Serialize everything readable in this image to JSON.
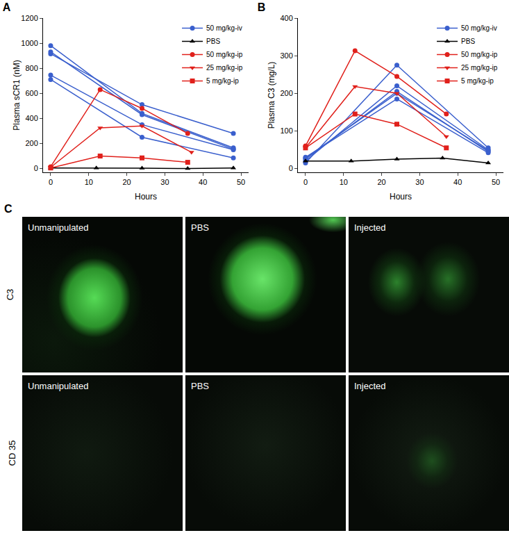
{
  "chart_data": [
    {
      "type": "line",
      "title": "A",
      "x_label": "Hours",
      "y_label": "Plasma sCR1 (nM)",
      "xlim": [
        -2,
        52
      ],
      "xticks": [
        0,
        10,
        20,
        30,
        40,
        50
      ],
      "ylim": [
        -30,
        1200
      ],
      "yticks": [
        0,
        200,
        400,
        600,
        800,
        1000,
        1200
      ],
      "grid": false,
      "legend": "upper right",
      "series": [
        {
          "name": "50 mg/kg-iv",
          "color": "#3a5fcd",
          "marker": "circle",
          "x": [
            0,
            24,
            48
          ],
          "values": [
            980,
            440,
            165
          ]
        },
        {
          "name": "50 mg/kg-iv",
          "color": "#3a5fcd",
          "marker": "circle",
          "x": [
            0,
            24,
            48
          ],
          "values": [
            930,
            430,
            155
          ]
        },
        {
          "name": "50 mg/kg-iv",
          "color": "#3a5fcd",
          "marker": "circle",
          "x": [
            0,
            24,
            48
          ],
          "values": [
            915,
            510,
            280
          ]
        },
        {
          "name": "50 mg/kg-iv",
          "color": "#3a5fcd",
          "marker": "circle",
          "x": [
            0,
            24,
            48
          ],
          "values": [
            745,
            350,
            150
          ]
        },
        {
          "name": "50 mg/kg-iv",
          "color": "#3a5fcd",
          "marker": "circle",
          "x": [
            0,
            24,
            48
          ],
          "values": [
            710,
            250,
            85
          ]
        },
        {
          "name": "PBS",
          "color": "#000000",
          "marker": "triangle-up",
          "x": [
            0,
            12,
            24,
            36,
            48
          ],
          "values": [
            5,
            5,
            3,
            0,
            5
          ]
        },
        {
          "name": "50 mg/kg-ip",
          "color": "#e0201b",
          "marker": "circle",
          "x": [
            0,
            13,
            24,
            36
          ],
          "values": [
            15,
            630,
            480,
            280
          ]
        },
        {
          "name": "25 mg/kg-ip",
          "color": "#e0201b",
          "marker": "triangle-down",
          "x": [
            0,
            13,
            24,
            37
          ],
          "values": [
            10,
            325,
            340,
            130
          ]
        },
        {
          "name": "5 mg/kg-ip",
          "color": "#e0201b",
          "marker": "square",
          "x": [
            0,
            13,
            24,
            36
          ],
          "values": [
            5,
            100,
            85,
            50
          ]
        }
      ]
    },
    {
      "type": "line",
      "title": "B",
      "x_label": "Hours",
      "y_label": "Plasma C3 (mg/L)",
      "xlim": [
        -2,
        52
      ],
      "xticks": [
        0,
        10,
        20,
        30,
        40,
        50
      ],
      "ylim": [
        -10,
        400
      ],
      "yticks": [
        0,
        100,
        200,
        300,
        400
      ],
      "grid": false,
      "legend": "upper right",
      "series": [
        {
          "name": "50 mg/kg-iv",
          "color": "#3a5fcd",
          "marker": "circle",
          "x": [
            0,
            24,
            48
          ],
          "values": [
            15,
            275,
            55
          ]
        },
        {
          "name": "50 mg/kg-iv",
          "color": "#3a5fcd",
          "marker": "circle",
          "x": [
            0,
            24,
            48
          ],
          "values": [
            20,
            220,
            50
          ]
        },
        {
          "name": "50 mg/kg-iv",
          "color": "#3a5fcd",
          "marker": "circle",
          "x": [
            0,
            24,
            48
          ],
          "values": [
            25,
            205,
            45
          ]
        },
        {
          "name": "50 mg/kg-iv",
          "color": "#3a5fcd",
          "marker": "circle",
          "x": [
            0,
            24,
            48
          ],
          "values": [
            28,
            200,
            48
          ]
        },
        {
          "name": "50 mg/kg-iv",
          "color": "#3a5fcd",
          "marker": "circle",
          "x": [
            0,
            24,
            48
          ],
          "values": [
            30,
            185,
            42
          ]
        },
        {
          "name": "PBS",
          "color": "#000000",
          "marker": "triangle-up",
          "x": [
            0,
            12,
            24,
            36,
            48
          ],
          "values": [
            20,
            20,
            25,
            28,
            15
          ]
        },
        {
          "name": "50 mg/kg-ip",
          "color": "#e0201b",
          "marker": "circle",
          "x": [
            0,
            13,
            24,
            37
          ],
          "values": [
            60,
            313,
            245,
            145
          ]
        },
        {
          "name": "25 mg/kg-ip",
          "color": "#e0201b",
          "marker": "triangle-down",
          "x": [
            0,
            13,
            24,
            37
          ],
          "values": [
            55,
            218,
            200,
            85
          ]
        },
        {
          "name": "5 mg/kg-ip",
          "color": "#e0201b",
          "marker": "square",
          "x": [
            0,
            13,
            24,
            37
          ],
          "values": [
            55,
            145,
            118,
            55
          ]
        }
      ]
    }
  ],
  "micrographs": {
    "label": "C",
    "rows": [
      "C3",
      "CD 35"
    ],
    "image_labels": [
      "Unmanipulated",
      "PBS",
      "Injected"
    ]
  }
}
